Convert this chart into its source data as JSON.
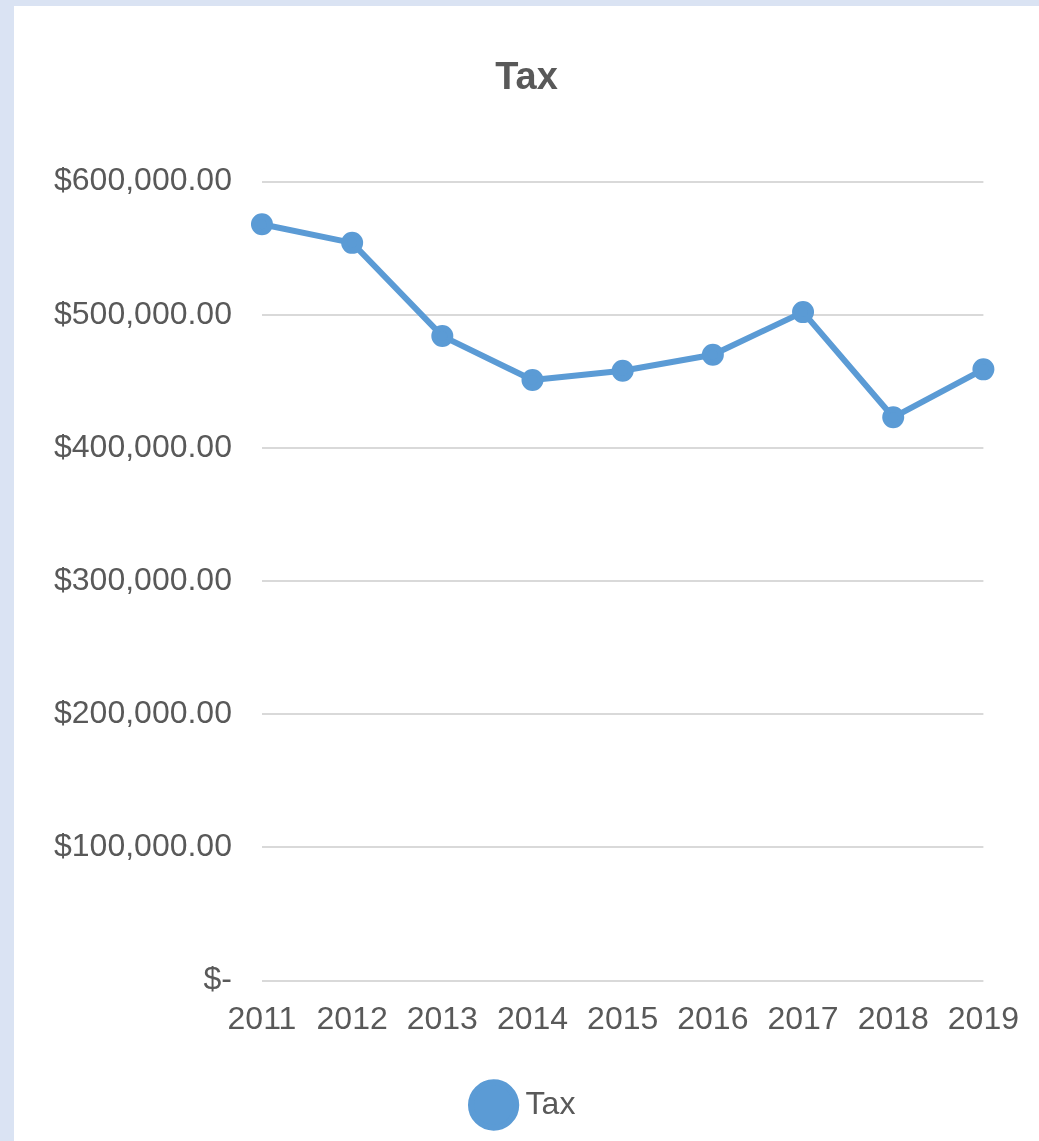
{
  "chart_data": {
    "type": "line",
    "title": "Tax",
    "categories": [
      "2011",
      "2012",
      "2013",
      "2014",
      "2015",
      "2016",
      "2017",
      "2018",
      "2019"
    ],
    "series": [
      {
        "name": "Tax",
        "color": "#5b9bd5",
        "values": [
          568000,
          554000,
          484000,
          451000,
          458000,
          470000,
          502000,
          423000,
          459000
        ]
      }
    ],
    "ylim": [
      0,
      600000
    ],
    "yticks": [
      {
        "value": 0,
        "label": "$-"
      },
      {
        "value": 100000,
        "label": "$100,000.00"
      },
      {
        "value": 200000,
        "label": "$200,000.00"
      },
      {
        "value": 300000,
        "label": "$300,000.00"
      },
      {
        "value": 400000,
        "label": "$400,000.00"
      },
      {
        "value": 500000,
        "label": "$500,000.00"
      },
      {
        "value": 600000,
        "label": "$600,000.00"
      }
    ],
    "grid": "y",
    "legend": "bottom",
    "marker": "circle",
    "line_style": "solid"
  }
}
